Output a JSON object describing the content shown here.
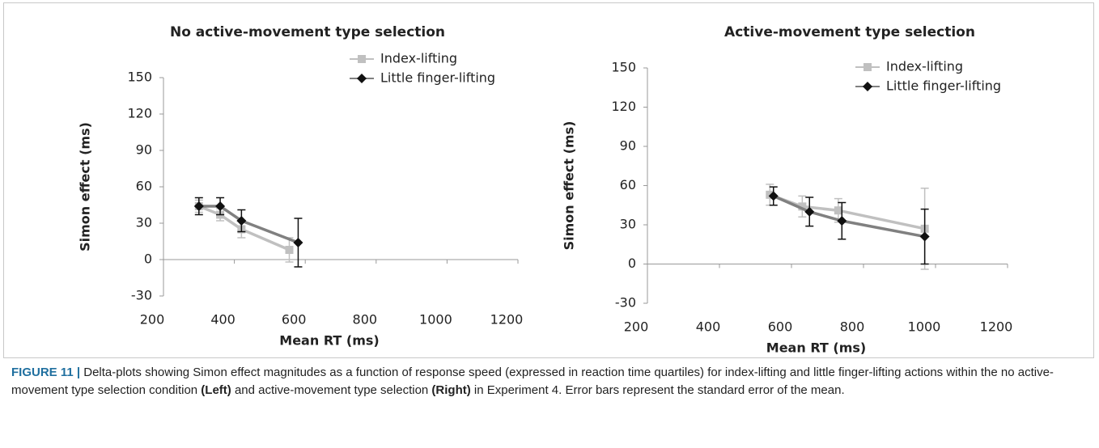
{
  "chart_data": [
    {
      "type": "line",
      "title": "No active-movement type selection",
      "x_label": "Mean RT (ms)",
      "y_label": "Simon effect (ms)",
      "xlim": [
        200,
        1200
      ],
      "xticks": [
        200,
        400,
        600,
        800,
        1000,
        1200
      ],
      "ylim": [
        -30,
        150
      ],
      "yticks": [
        -30,
        0,
        30,
        60,
        90,
        120,
        150
      ],
      "series": [
        {
          "name": "Index-lifting",
          "color": "#c0c0c0",
          "marker": "square",
          "marker_color": "#c0c0c0",
          "x": [
            300,
            360,
            420,
            555
          ],
          "values": [
            44,
            37,
            25,
            8
          ],
          "errors": [
            5,
            5,
            7,
            10
          ]
        },
        {
          "name": "Little finger-lifting",
          "color": "#808080",
          "marker": "diamond",
          "marker_color": "#111111",
          "x": [
            300,
            360,
            420,
            580
          ],
          "values": [
            44,
            44,
            32,
            14
          ],
          "errors": [
            7,
            7,
            9,
            20
          ]
        }
      ]
    },
    {
      "type": "line",
      "title": "Active-movement type selection",
      "x_label": "Mean RT (ms)",
      "y_label": "Simon effect (ms)",
      "xlim": [
        200,
        1200
      ],
      "xticks": [
        200,
        400,
        600,
        800,
        1000,
        1200
      ],
      "ylim": [
        -30,
        150
      ],
      "yticks": [
        -30,
        0,
        30,
        60,
        90,
        120,
        150
      ],
      "series": [
        {
          "name": "Index-lifting",
          "color": "#c0c0c0",
          "marker": "square",
          "marker_color": "#c0c0c0",
          "x": [
            540,
            630,
            730,
            970
          ],
          "values": [
            53,
            44,
            41,
            27
          ],
          "errors": [
            8,
            8,
            9,
            31
          ]
        },
        {
          "name": "Little finger-lifting",
          "color": "#808080",
          "marker": "diamond",
          "marker_color": "#111111",
          "x": [
            550,
            650,
            740,
            970
          ],
          "values": [
            52,
            40,
            33,
            21
          ],
          "errors": [
            7,
            11,
            14,
            21
          ]
        }
      ]
    }
  ],
  "caption": {
    "label": "FIGURE 11 |",
    "segments": [
      " Delta-plots showing Simon effect magnitudes as a function of response speed (expressed in reaction time quartiles) for index-lifting and little finger-lifting actions within the no active-movement type selection condition ",
      "(Left)",
      " and active-movement type selection ",
      "(Right)",
      " in Experiment 4. Error bars represent the standard error of the mean."
    ]
  }
}
